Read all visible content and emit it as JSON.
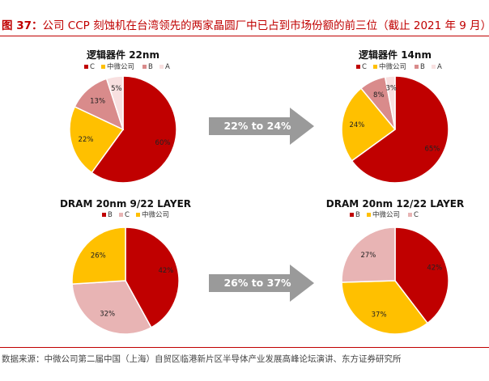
{
  "figure": {
    "prefix": "图 37：",
    "title": "公司 CCP 刻蚀机在台湾领先的两家晶圆厂中已占到市场份额的前三位（截止 2021 年 9 月）",
    "source": "数据来源：中微公司第二届中国（上海）自贸区临港新片区半导体产业发展高峰论坛演讲、东方证券研究所"
  },
  "arrows": [
    {
      "label": "22% to 24%"
    },
    {
      "label": "26% to 37%"
    }
  ],
  "colors": {
    "red": "#c00000",
    "yellow": "#ffc000",
    "pink": "#e8a8a8",
    "light_pink": "#f8e0e0",
    "arrow_gray": "#9a9a9a"
  },
  "chart_data": [
    {
      "type": "pie",
      "title": "逻辑器件 22nm",
      "legend": [
        "C",
        "中微公司",
        "B",
        "A"
      ],
      "slices": [
        {
          "name": "C",
          "value": 60,
          "label": "60%",
          "color": "#c00000"
        },
        {
          "name": "中微公司",
          "value": 22,
          "label": "22%",
          "color": "#ffc000"
        },
        {
          "name": "B",
          "value": 13,
          "label": "13%",
          "color": "#d98b8b"
        },
        {
          "name": "A",
          "value": 5,
          "label": "5%",
          "color": "#f8e0e0"
        }
      ]
    },
    {
      "type": "pie",
      "title": "逻辑器件 14nm",
      "legend": [
        "C",
        "中微公司",
        "B",
        "A"
      ],
      "slices": [
        {
          "name": "C",
          "value": 65,
          "label": "65%",
          "color": "#c00000"
        },
        {
          "name": "中微公司",
          "value": 24,
          "label": "24%",
          "color": "#ffc000"
        },
        {
          "name": "B",
          "value": 8,
          "label": "8%",
          "color": "#d98b8b"
        },
        {
          "name": "A",
          "value": 3,
          "label": "3%",
          "color": "#f8e0e0"
        }
      ]
    },
    {
      "type": "pie",
      "title": "DRAM 20nm 9/22 LAYER",
      "legend": [
        "B",
        "C",
        "中微公司"
      ],
      "slices": [
        {
          "name": "B",
          "value": 42,
          "label": "42%",
          "color": "#c00000"
        },
        {
          "name": "C",
          "value": 32,
          "label": "32%",
          "color": "#e8b4b4"
        },
        {
          "name": "中微公司",
          "value": 26,
          "label": "26%",
          "color": "#ffc000"
        }
      ]
    },
    {
      "type": "pie",
      "title": "DRAM 20nm 12/22 LAYER",
      "legend": [
        "B",
        "中微公司",
        "C"
      ],
      "slices": [
        {
          "name": "B",
          "value": 42,
          "label": "42%",
          "color": "#c00000"
        },
        {
          "name": "中微公司",
          "value": 37,
          "label": "37%",
          "color": "#ffc000"
        },
        {
          "name": "C",
          "value": 27,
          "label": "27%",
          "color": "#e8b4b4"
        }
      ]
    }
  ]
}
